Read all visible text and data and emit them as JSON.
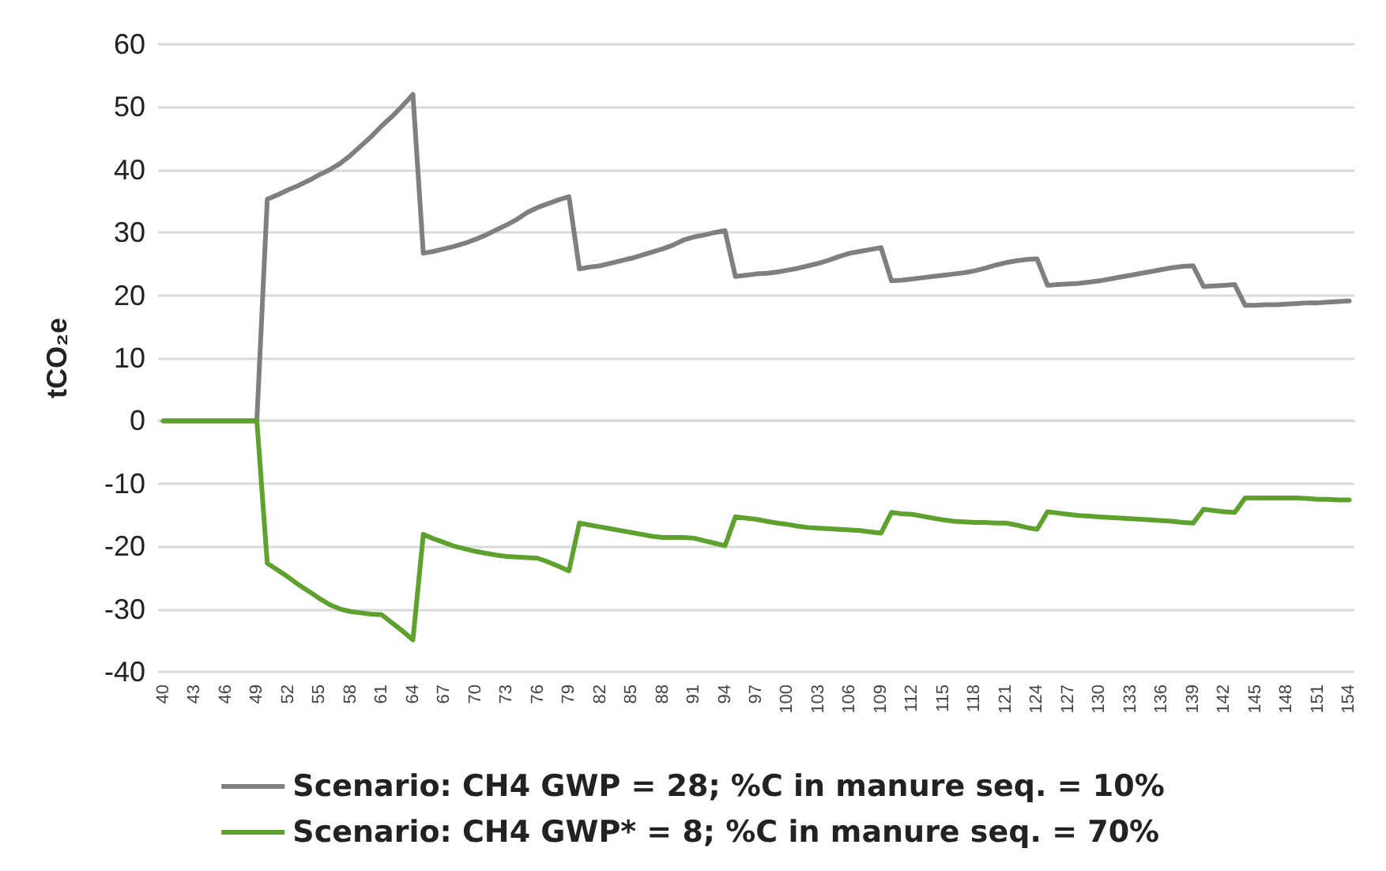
{
  "chart_data": {
    "type": "line",
    "ylabel": "tCO₂e",
    "categories": [
      "40",
      null,
      null,
      "43",
      null,
      null,
      "46",
      null,
      null,
      "49",
      null,
      null,
      "52",
      null,
      null,
      "55",
      null,
      null,
      "58",
      null,
      null,
      "61",
      null,
      null,
      "64",
      null,
      null,
      "67",
      null,
      null,
      "70",
      null,
      null,
      "73",
      null,
      null,
      "76",
      null,
      null,
      "79",
      null,
      null,
      "82",
      null,
      null,
      "85",
      null,
      null,
      "88",
      null,
      null,
      "91",
      null,
      null,
      "94",
      null,
      null,
      "97",
      null,
      null,
      "100",
      null,
      null,
      "103",
      null,
      null,
      "106",
      null,
      null,
      "109",
      null,
      null,
      "112",
      null,
      null,
      "115",
      null,
      null,
      "118",
      null,
      null,
      "121",
      null,
      null,
      "124",
      null,
      null,
      "127",
      null,
      null,
      "130",
      null,
      null,
      "133",
      null,
      null,
      "136",
      null,
      null,
      "139",
      null,
      null,
      "142",
      null,
      null,
      "145",
      null,
      null,
      "148",
      null,
      null,
      "151",
      null,
      null,
      "154"
    ],
    "series": [
      {
        "name": "Scenario: CH4 GWP = 28; %C in manure seq. = 10%",
        "color": "#7f7f7f",
        "values": [
          0,
          0,
          0,
          0,
          0,
          0,
          0,
          0,
          0,
          0,
          35.3,
          36,
          36.8,
          37.5,
          38.3,
          39.2,
          40,
          41,
          42.3,
          43.8,
          45.3,
          47,
          48.5,
          50.2,
          52,
          26.7,
          27,
          27.4,
          27.8,
          28.3,
          28.9,
          29.6,
          30.4,
          31.2,
          32.1,
          33.2,
          34,
          34.6,
          35.2,
          35.7,
          24.2,
          24.5,
          24.7,
          25.1,
          25.5,
          25.9,
          26.4,
          26.9,
          27.4,
          28,
          28.8,
          29.3,
          29.6,
          30,
          30.3,
          23,
          23.2,
          23.4,
          23.5,
          23.7,
          24,
          24.3,
          24.7,
          25.1,
          25.6,
          26.2,
          26.7,
          27,
          27.3,
          27.6,
          22.3,
          22.4,
          22.6,
          22.8,
          23,
          23.2,
          23.4,
          23.6,
          23.9,
          24.3,
          24.8,
          25.2,
          25.5,
          25.7,
          25.8,
          21.6,
          21.7,
          21.8,
          21.9,
          22.1,
          22.3,
          22.6,
          22.9,
          23.2,
          23.5,
          23.8,
          24.1,
          24.4,
          24.6,
          24.7,
          21.4,
          21.5,
          21.6,
          21.7,
          18.4,
          18.4,
          18.5,
          18.5,
          18.6,
          18.7,
          18.8,
          18.8,
          18.9,
          19,
          19.1
        ]
      },
      {
        "name": "Scenario: CH4 GWP* = 8; %C in manure seq. = 70%",
        "color": "#5ea12f",
        "values": [
          0,
          0,
          0,
          0,
          0,
          0,
          0,
          0,
          0,
          0,
          -22.7,
          -23.8,
          -24.9,
          -26.1,
          -27.2,
          -28.3,
          -29.3,
          -30,
          -30.4,
          -30.6,
          -30.8,
          -30.9,
          -32.2,
          -33.5,
          -34.9,
          -18.1,
          -18.8,
          -19.4,
          -20,
          -20.4,
          -20.8,
          -21.1,
          -21.4,
          -21.6,
          -21.7,
          -21.8,
          -21.9,
          -22.5,
          -23.2,
          -23.9,
          -16.3,
          -16.6,
          -16.9,
          -17.2,
          -17.5,
          -17.8,
          -18.1,
          -18.4,
          -18.6,
          -18.6,
          -18.6,
          -18.7,
          -19.1,
          -19.5,
          -19.9,
          -15.3,
          -15.5,
          -15.7,
          -16,
          -16.3,
          -16.5,
          -16.8,
          -17,
          -17.1,
          -17.2,
          -17.3,
          -17.4,
          -17.5,
          -17.7,
          -17.9,
          -14.6,
          -14.8,
          -14.9,
          -15.2,
          -15.5,
          -15.8,
          -16,
          -16.1,
          -16.2,
          -16.2,
          -16.3,
          -16.3,
          -16.6,
          -17,
          -17.3,
          -14.5,
          -14.7,
          -14.9,
          -15.1,
          -15.2,
          -15.3,
          -15.4,
          -15.5,
          -15.6,
          -15.7,
          -15.8,
          -15.9,
          -16,
          -16.2,
          -16.3,
          -14.1,
          -14.3,
          -14.5,
          -14.6,
          -12.3,
          -12.3,
          -12.3,
          -12.3,
          -12.3,
          -12.3,
          -12.4,
          -12.5,
          -12.5,
          -12.6,
          -12.6
        ]
      }
    ],
    "ylim": [
      -40,
      60
    ],
    "yticks": [
      -40,
      -30,
      -20,
      -10,
      0,
      10,
      20,
      30,
      40,
      50,
      60
    ],
    "grid": "y",
    "legend": "bottom",
    "marker": "none",
    "line_style": "solid"
  }
}
